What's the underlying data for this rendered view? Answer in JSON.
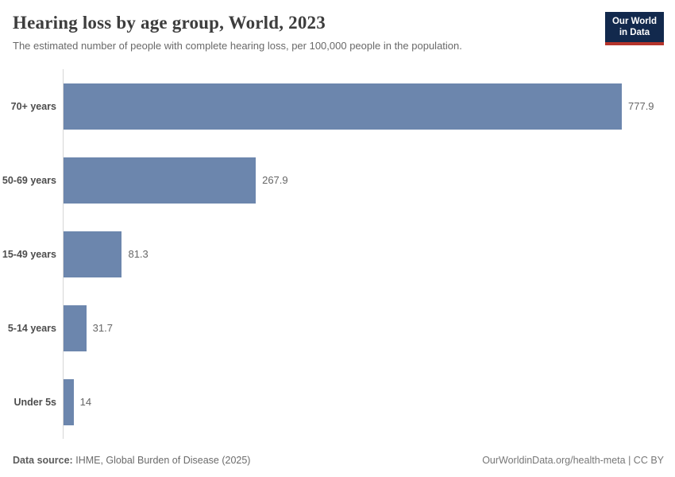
{
  "header": {
    "title": "Hearing loss by age group, World, 2023",
    "subtitle": "The estimated number of people with complete hearing loss, per 100,000 people in the population.",
    "logo": {
      "line1": "Our World",
      "line2": "in Data"
    }
  },
  "chart_data": {
    "type": "bar",
    "orientation": "horizontal",
    "title": "Hearing loss by age group, World, 2023",
    "xlabel": "",
    "ylabel": "",
    "categories": [
      "70+ years",
      "50-69 years",
      "15-49 years",
      "5-14 years",
      "Under 5s"
    ],
    "values": [
      777.9,
      267.9,
      81.3,
      31.7,
      14
    ],
    "value_labels": [
      "777.9",
      "267.9",
      "81.3",
      "31.7",
      "14"
    ],
    "xlim": [
      0,
      780
    ],
    "grid": false,
    "legend": false,
    "bar_color": "#6c86ad"
  },
  "footer": {
    "source_label": "Data source:",
    "source_value": "IHME, Global Burden of Disease (2025)",
    "credit": "OurWorldinData.org/health-meta | CC BY"
  },
  "colors": {
    "bar": "#6c86ad",
    "axis_line": "#d6d6d6",
    "logo_navy": "#12294d",
    "logo_red": "#b5342b"
  }
}
